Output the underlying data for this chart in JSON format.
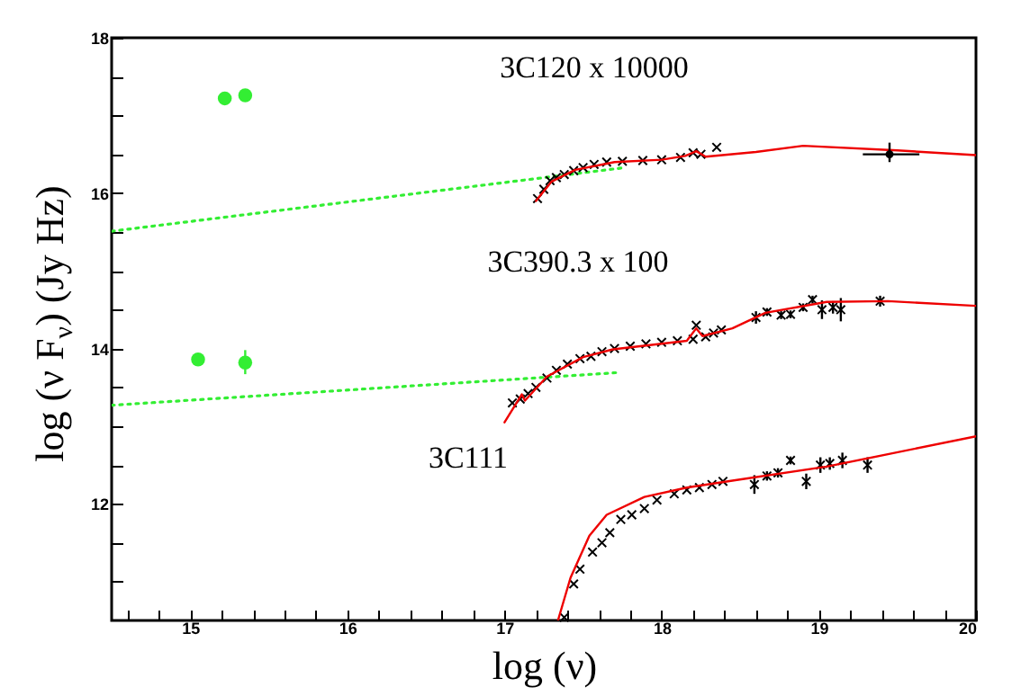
{
  "chart_data": {
    "type": "scatter",
    "xlabel": "log (ν)",
    "ylabel": "log (ν F$_{ν}$)   (Jy Hz)",
    "xlim": [
      14.5,
      20
    ],
    "ylim": [
      10.5,
      18
    ],
    "xticks": [
      {
        "value": 14.6,
        "label": null
      },
      {
        "value": 14.8,
        "label": null
      },
      15,
      {
        "value": 15.2,
        "label": null
      },
      {
        "value": 15.4,
        "label": null
      },
      {
        "value": 15.6,
        "label": null
      },
      {
        "value": 15.8,
        "label": null
      },
      16,
      {
        "value": 16.2,
        "label": null
      },
      {
        "value": 16.4,
        "label": null
      },
      {
        "value": 16.6,
        "label": null
      },
      {
        "value": 16.8,
        "label": null
      },
      17,
      {
        "value": 17.2,
        "label": null
      },
      {
        "value": 17.4,
        "label": null
      },
      {
        "value": 17.6,
        "label": null
      },
      {
        "value": 17.8,
        "label": null
      },
      18,
      {
        "value": 18.2,
        "label": null
      },
      {
        "value": 18.4,
        "label": null
      },
      {
        "value": 18.6,
        "label": null
      },
      {
        "value": 18.8,
        "label": null
      },
      19,
      {
        "value": 19.2,
        "label": null
      },
      {
        "value": 19.4,
        "label": null
      },
      {
        "value": 19.6,
        "label": null
      },
      {
        "value": 19.8,
        "label": null
      },
      20
    ],
    "yticks": [
      {
        "value": 11,
        "label": null
      },
      {
        "value": 11.5,
        "label": null
      },
      12,
      {
        "value": 12.5,
        "label": null
      },
      {
        "value": 13,
        "label": null
      },
      {
        "value": 13.5,
        "label": null
      },
      14,
      {
        "value": 14.5,
        "label": null
      },
      {
        "value": 15,
        "label": null
      },
      {
        "value": 15.5,
        "label": null
      },
      16,
      {
        "value": 16.5,
        "label": null
      },
      {
        "value": 17,
        "label": null
      },
      {
        "value": 17.5,
        "label": null
      },
      18
    ],
    "annotations": [
      "3C120   x 10000",
      "3C390.3  x 100",
      "3C111"
    ],
    "series": [
      {
        "type": "line",
        "color": "#33ee33",
        "line_style": "dotted",
        "x": [
          14.5,
          17.77
        ],
        "values": [
          15.51,
          16.33
        ]
      },
      {
        "type": "line",
        "color": "#33ee33",
        "line_style": "dotted",
        "x": [
          14.5,
          17.72
        ],
        "values": [
          13.27,
          13.69
        ]
      },
      {
        "marker": "cross",
        "color": "#000000",
        "x": [
          17.21,
          17.25,
          17.29,
          17.33,
          17.38,
          17.44,
          17.5,
          17.57,
          17.65,
          17.75,
          17.88,
          18.0,
          18.12,
          18.2,
          18.25,
          18.35
        ],
        "values": [
          15.93,
          16.05,
          16.16,
          16.2,
          16.24,
          16.29,
          16.33,
          16.37,
          16.4,
          16.41,
          16.42,
          16.43,
          16.46,
          16.52,
          16.5,
          16.59
        ]
      },
      {
        "type": "line",
        "color": "#ee0000",
        "line_style": "solid",
        "x": [
          17.2,
          17.3,
          17.45,
          17.7,
          18.0,
          18.15,
          18.22,
          18.28,
          18.6,
          18.9,
          19.5,
          20
        ],
        "values": [
          15.9,
          16.15,
          16.3,
          16.4,
          16.43,
          16.48,
          16.54,
          16.47,
          16.53,
          16.61,
          16.55,
          16.49
        ]
      },
      {
        "marker": "circle",
        "color": "#000000",
        "x": [
          19.45
        ],
        "values": [
          16.5
        ],
        "errors": [
          [
            16.4,
            16.65
          ]
        ],
        "xerrors": [
          [
            19.28,
            19.64
          ]
        ]
      },
      {
        "marker": "circle",
        "color": "#33ee33",
        "x": [
          15.22,
          15.35
        ],
        "values": [
          17.22,
          17.26
        ]
      },
      {
        "marker": "cross",
        "color": "#000000",
        "x": [
          17.05,
          17.1,
          17.15,
          17.2,
          17.27,
          17.33,
          17.4,
          17.48,
          17.55,
          17.62,
          17.7,
          17.8,
          17.9,
          18.0,
          18.1,
          18.2,
          18.22,
          18.28,
          18.33,
          18.38,
          18.6,
          18.67,
          18.76,
          18.82,
          18.9,
          18.96,
          19.02,
          19.09,
          19.14,
          19.39
        ],
        "values": [
          13.3,
          13.35,
          13.42,
          13.5,
          13.62,
          13.72,
          13.8,
          13.87,
          13.9,
          13.96,
          14.0,
          14.03,
          14.06,
          14.08,
          14.1,
          14.12,
          14.3,
          14.15,
          14.2,
          14.24,
          14.4,
          14.47,
          14.43,
          14.44,
          14.53,
          14.63,
          14.5,
          14.53,
          14.5,
          14.61
        ],
        "errors": [
          null,
          null,
          null,
          null,
          null,
          null,
          null,
          null,
          null,
          null,
          null,
          null,
          null,
          null,
          null,
          null,
          null,
          null,
          null,
          null,
          0.08,
          0.05,
          0.05,
          0.05,
          0.05,
          0.05,
          0.12,
          0.08,
          0.15,
          0.07
        ]
      },
      {
        "type": "line",
        "color": "#ee0000",
        "line_style": "solid",
        "x": [
          17.0,
          17.11,
          17.13,
          17.27,
          17.5,
          17.69,
          18.16,
          18.22,
          18.26,
          18.45,
          18.66,
          19.05,
          19.44,
          20
        ],
        "values": [
          13.05,
          13.41,
          13.33,
          13.64,
          13.89,
          13.99,
          14.1,
          14.26,
          14.16,
          14.26,
          14.46,
          14.6,
          14.61,
          14.55
        ]
      },
      {
        "marker": "circle",
        "color": "#33ee33",
        "x": [
          15.05,
          15.35
        ],
        "values": [
          13.86,
          13.82
        ],
        "errors": [
          0.08,
          [
            13.67,
            13.98
          ]
        ]
      },
      {
        "marker": "cross",
        "color": "#000000",
        "x": [
          17.38,
          17.44,
          17.48,
          17.56,
          17.62,
          17.67,
          17.74,
          17.81,
          17.89,
          17.97,
          18.08,
          18.16,
          18.24,
          18.32,
          18.39,
          18.59,
          18.67,
          18.74,
          18.82,
          18.92,
          19.01,
          19.07,
          19.15,
          19.31
        ],
        "values": [
          10.54,
          10.97,
          11.16,
          11.38,
          11.5,
          11.63,
          11.8,
          11.86,
          11.94,
          12.05,
          12.13,
          12.18,
          12.21,
          12.25,
          12.29,
          12.25,
          12.36,
          12.4,
          12.56,
          12.29,
          12.5,
          12.52,
          12.56,
          12.5
        ],
        "errors": [
          null,
          null,
          null,
          null,
          null,
          null,
          null,
          null,
          null,
          null,
          null,
          null,
          null,
          null,
          null,
          0.12,
          0.06,
          0.06,
          0.05,
          0.1,
          0.1,
          0.08,
          0.1,
          0.1
        ]
      },
      {
        "type": "line",
        "color": "#ee0000",
        "line_style": "solid",
        "x": [
          17.34,
          17.42,
          17.54,
          17.65,
          17.89,
          18.16,
          18.45,
          19.05,
          20
        ],
        "values": [
          10.5,
          11.05,
          11.59,
          11.86,
          12.09,
          12.21,
          12.3,
          12.48,
          12.87
        ]
      }
    ]
  }
}
